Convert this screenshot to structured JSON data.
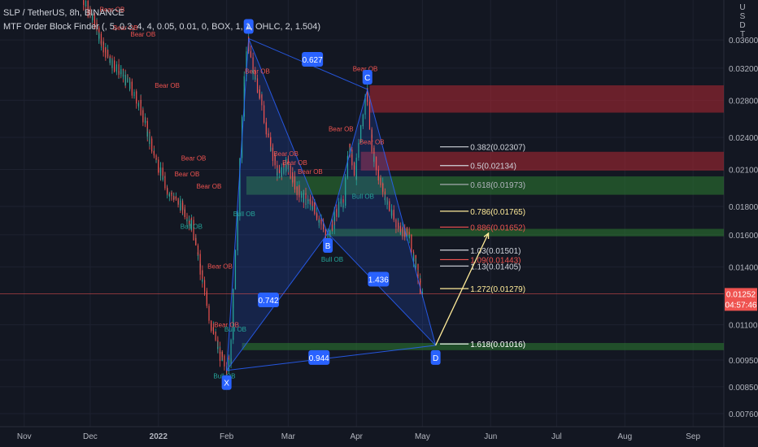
{
  "header": {
    "symbol": "SLP / TetherUS, 8h, BINANCE",
    "indicator": "MTF Order Block Finder (, 5, 0.3, 4, 4, 0.05, 0.01, 0, BOX, 1, 1, OHLC, 2, 1.504)",
    "currency": "USDT",
    "currency_letters": [
      "U",
      "S",
      "D",
      "T"
    ]
  },
  "colors": {
    "background": "#131722",
    "grid": "#1e2230",
    "axis_text": "#b2b5be",
    "candle_up": "#26a69a",
    "candle_down": "#ef5350",
    "bear_zone": "#b22833",
    "bull_zone": "#2e7d32",
    "pattern": "#2962ff",
    "pattern_label": "#2962ff",
    "price_line": "#ef5350",
    "projection": "#ffeb99"
  },
  "chart_data": {
    "type": "candlestick",
    "title": "SLP / TetherUS, 8h, BINANCE",
    "y_axis": {
      "scale": "log",
      "ylim": [
        0.0072,
        0.0425
      ],
      "ticks": [
        "0.03600",
        "0.03200",
        "0.02800",
        "0.02400",
        "0.02100",
        "0.01800",
        "0.01600",
        "0.01400",
        "0.01100",
        "0.00950",
        "0.00850",
        "0.00760"
      ],
      "tick_values": [
        0.036,
        0.032,
        0.028,
        0.024,
        0.021,
        0.018,
        0.016,
        0.014,
        0.011,
        0.0095,
        0.0085,
        0.0076
      ]
    },
    "x_axis": {
      "range": [
        "2021-10-21",
        "2022-09-15"
      ],
      "ticks": [
        {
          "label": "Nov",
          "date": "2021-11-01",
          "bold": false
        },
        {
          "label": "Dec",
          "date": "2021-12-01",
          "bold": false
        },
        {
          "label": "2022",
          "date": "2022-01-01",
          "bold": true
        },
        {
          "label": "Feb",
          "date": "2022-02-01",
          "bold": false
        },
        {
          "label": "Mar",
          "date": "2022-03-01",
          "bold": false
        },
        {
          "label": "Apr",
          "date": "2022-04-01",
          "bold": false
        },
        {
          "label": "May",
          "date": "2022-05-01",
          "bold": false
        },
        {
          "label": "Jun",
          "date": "2022-06-01",
          "bold": false
        },
        {
          "label": "Jul",
          "date": "2022-07-01",
          "bold": false
        },
        {
          "label": "Aug",
          "date": "2022-08-01",
          "bold": false
        },
        {
          "label": "Sep",
          "date": "2022-09-01",
          "bold": false
        }
      ]
    },
    "price_path": [
      [
        "2021-11-26",
        0.0455
      ],
      [
        "2021-11-30",
        0.041
      ],
      [
        "2021-12-04",
        0.038
      ],
      [
        "2021-12-08",
        0.0345
      ],
      [
        "2021-12-12",
        0.0325
      ],
      [
        "2021-12-16",
        0.031
      ],
      [
        "2021-12-20",
        0.0295
      ],
      [
        "2021-12-24",
        0.0275
      ],
      [
        "2021-12-28",
        0.024
      ],
      [
        "2022-01-01",
        0.0215
      ],
      [
        "2022-01-05",
        0.0195
      ],
      [
        "2022-01-09",
        0.0185
      ],
      [
        "2022-01-13",
        0.0178
      ],
      [
        "2022-01-17",
        0.0165
      ],
      [
        "2022-01-21",
        0.0135
      ],
      [
        "2022-01-25",
        0.0112
      ],
      [
        "2022-01-29",
        0.0098
      ],
      [
        "2022-02-01",
        0.0092
      ],
      [
        "2022-02-03",
        0.0095
      ],
      [
        "2022-02-06",
        0.0155
      ],
      [
        "2022-02-09",
        0.0285
      ],
      [
        "2022-02-11",
        0.0365
      ],
      [
        "2022-02-13",
        0.032
      ],
      [
        "2022-02-17",
        0.028
      ],
      [
        "2022-02-21",
        0.0235
      ],
      [
        "2022-02-25",
        0.0205
      ],
      [
        "2022-03-01",
        0.0215
      ],
      [
        "2022-03-05",
        0.0195
      ],
      [
        "2022-03-09",
        0.0185
      ],
      [
        "2022-03-13",
        0.018
      ],
      [
        "2022-03-17",
        0.0165
      ],
      [
        "2022-03-19",
        0.0155
      ],
      [
        "2022-03-23",
        0.0175
      ],
      [
        "2022-03-27",
        0.0185
      ],
      [
        "2022-03-29",
        0.0235
      ],
      [
        "2022-04-01",
        0.0205
      ],
      [
        "2022-04-04",
        0.0255
      ],
      [
        "2022-04-06",
        0.0292
      ],
      [
        "2022-04-09",
        0.0225
      ],
      [
        "2022-04-13",
        0.0195
      ],
      [
        "2022-04-17",
        0.0175
      ],
      [
        "2022-04-21",
        0.0165
      ],
      [
        "2022-04-25",
        0.016
      ],
      [
        "2022-04-29",
        0.0138
      ],
      [
        "2022-05-01",
        0.0125
      ]
    ],
    "order_blocks": [
      {
        "type": "bear",
        "from": "2022-04-07",
        "to": "2022-09-15",
        "top": 0.0298,
        "bottom": 0.0266
      },
      {
        "type": "bear",
        "from": "2022-04-03",
        "to": "2022-09-15",
        "top": 0.0226,
        "bottom": 0.0209
      },
      {
        "type": "bull",
        "from": "2022-02-10",
        "to": "2022-09-15",
        "top": 0.0204,
        "bottom": 0.0189
      },
      {
        "type": "bull",
        "from": "2022-03-19",
        "to": "2022-09-15",
        "top": 0.0164,
        "bottom": 0.0159
      },
      {
        "type": "bull",
        "from": "2022-02-08",
        "to": "2022-09-15",
        "top": 0.0102,
        "bottom": 0.0099
      }
    ],
    "ob_labels": [
      {
        "text": "Bear OB",
        "type": "bear",
        "date": "2021-12-11",
        "price": 0.0405
      },
      {
        "text": "Bear OB",
        "type": "bear",
        "date": "2021-12-17",
        "price": 0.0375
      },
      {
        "text": "Bear OB",
        "type": "bear",
        "date": "2021-12-25",
        "price": 0.0365
      },
      {
        "text": "Bear OB",
        "type": "bear",
        "date": "2022-01-05",
        "price": 0.0295
      },
      {
        "text": "Bear OB",
        "type": "bear",
        "date": "2022-01-17",
        "price": 0.0218
      },
      {
        "text": "Bear OB",
        "type": "bear",
        "date": "2022-01-14",
        "price": 0.0204
      },
      {
        "text": "Bear OB",
        "type": "bear",
        "date": "2022-01-24",
        "price": 0.0194
      },
      {
        "text": "Bull OB",
        "type": "bull",
        "date": "2022-01-16",
        "price": 0.0164
      },
      {
        "text": "Bear OB",
        "type": "bear",
        "date": "2022-01-29",
        "price": 0.0139
      },
      {
        "text": "Bear OB",
        "type": "bear",
        "date": "2022-02-01",
        "price": 0.0109
      },
      {
        "text": "Bull OB",
        "type": "bull",
        "date": "2022-02-05",
        "price": 0.0107
      },
      {
        "text": "Bull OB",
        "type": "bull",
        "date": "2022-02-09",
        "price": 0.0173
      },
      {
        "text": "Bull OB",
        "type": "bull",
        "date": "2022-01-31",
        "price": 0.0088
      },
      {
        "text": "Bear OB",
        "type": "bear",
        "date": "2022-02-15",
        "price": 0.0313
      },
      {
        "text": "Bear OB",
        "type": "bear",
        "date": "2022-02-28",
        "price": 0.0222
      },
      {
        "text": "Bear OB",
        "type": "bear",
        "date": "2022-03-04",
        "price": 0.0214
      },
      {
        "text": "Bear OB",
        "type": "bear",
        "date": "2022-03-11",
        "price": 0.0206
      },
      {
        "text": "Bear OB",
        "type": "bear",
        "date": "2022-03-25",
        "price": 0.0246
      },
      {
        "text": "Bear OB",
        "type": "bear",
        "date": "2022-04-05",
        "price": 0.0316
      },
      {
        "text": "Bear OB",
        "type": "bear",
        "date": "2022-04-08",
        "price": 0.0233
      },
      {
        "text": "Bull OB",
        "type": "bull",
        "date": "2022-03-21",
        "price": 0.0143
      },
      {
        "text": "Bull OB",
        "type": "bull",
        "date": "2022-04-04",
        "price": 0.0186
      }
    ],
    "harmonic_pattern": {
      "points": [
        {
          "label": "X",
          "date": "2022-02-01",
          "price": 0.0091
        },
        {
          "label": "A",
          "date": "2022-02-11",
          "price": 0.0362
        },
        {
          "label": "B",
          "date": "2022-03-19",
          "price": 0.0161
        },
        {
          "label": "C",
          "date": "2022-04-06",
          "price": 0.0293
        },
        {
          "label": "D",
          "date": "2022-05-07",
          "price": 0.0101
        }
      ],
      "ratios": [
        {
          "text": "0.627",
          "date": "2022-03-12",
          "price": 0.0332
        },
        {
          "text": "0.742",
          "date": "2022-02-20",
          "price": 0.0122
        },
        {
          "text": "1.436",
          "date": "2022-04-11",
          "price": 0.0133
        },
        {
          "text": "0.944",
          "date": "2022-03-15",
          "price": 0.0096
        }
      ],
      "projection": {
        "from": [
          "2022-05-07",
          0.0101
        ],
        "to": [
          "2022-05-31",
          0.0161
        ]
      }
    },
    "fib_levels": [
      {
        "ratio": "0.382",
        "value": "0.02307",
        "color": "#d1d4dc"
      },
      {
        "ratio": "0.5",
        "value": "0.02134",
        "color": "#d1d4dc"
      },
      {
        "ratio": "0.618",
        "value": "0.01973",
        "color": "#b2b5be"
      },
      {
        "ratio": "0.786",
        "value": "0.01765",
        "color": "#ffeb99"
      },
      {
        "ratio": "0.886",
        "value": "0.01652",
        "color": "#ef5350"
      },
      {
        "ratio": "1.03",
        "value": "0.01501",
        "color": "#d1d4dc"
      },
      {
        "ratio": "1.09",
        "value": "0.01443",
        "color": "#ef5350"
      },
      {
        "ratio": "1.13",
        "value": "0.01405",
        "color": "#d1d4dc"
      },
      {
        "ratio": "1.272",
        "value": "0.01279",
        "color": "#ffeb99"
      },
      {
        "ratio": "1.618",
        "value": "0.01016",
        "color": "#ffffff"
      }
    ],
    "current_price": {
      "value": "0.01252",
      "countdown": "04:57:46",
      "price": 0.01252
    }
  }
}
